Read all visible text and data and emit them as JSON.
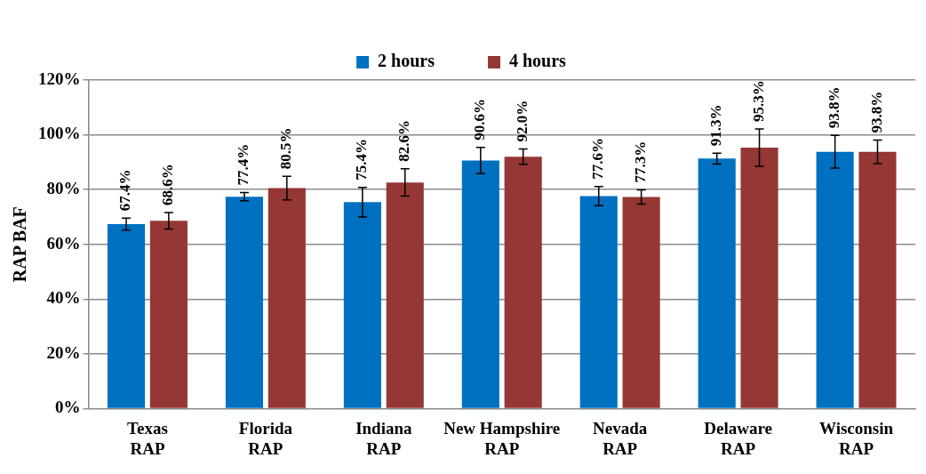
{
  "chart_data": {
    "type": "bar",
    "ylabel": "RAP BAF",
    "categories": [
      "Texas\nRAP",
      "Florida\nRAP",
      "Indiana\nRAP",
      "New Hampshire\nRAP",
      "Nevada\nRAP",
      "Delaware\nRAP",
      "Wisconsin\nRAP"
    ],
    "series": [
      {
        "name": "2 hours",
        "color": "#0070c0",
        "values": [
          67.4,
          77.4,
          75.4,
          90.6,
          77.6,
          91.3,
          93.8
        ],
        "errors": [
          2.2,
          1.5,
          5.4,
          4.8,
          3.5,
          2.0,
          6.0
        ],
        "value_labels": [
          "67.4%",
          "77.4%",
          "75.4%",
          "90.6%",
          "77.6%",
          "91.3%",
          "93.8%"
        ]
      },
      {
        "name": "4 hours",
        "color": "#953735",
        "values": [
          68.6,
          80.5,
          82.6,
          92.0,
          77.3,
          95.3,
          93.8
        ],
        "errors": [
          3.0,
          4.3,
          5.0,
          2.8,
          2.6,
          6.8,
          4.3
        ],
        "value_labels": [
          "68.6%",
          "80.5%",
          "82.6%",
          "92.0%",
          "77.3%",
          "95.3%",
          "93.8%"
        ]
      }
    ],
    "ylim": [
      0,
      120
    ],
    "yticks": [
      {
        "value": 0,
        "label": "0%"
      },
      {
        "value": 20,
        "label": "20%"
      },
      {
        "value": 40,
        "label": "40%"
      },
      {
        "value": 60,
        "label": "60%"
      },
      {
        "value": 80,
        "label": "80%"
      },
      {
        "value": 100,
        "label": "100%"
      },
      {
        "value": 120,
        "label": "120%"
      }
    ],
    "grid": "y",
    "legend": "top"
  }
}
